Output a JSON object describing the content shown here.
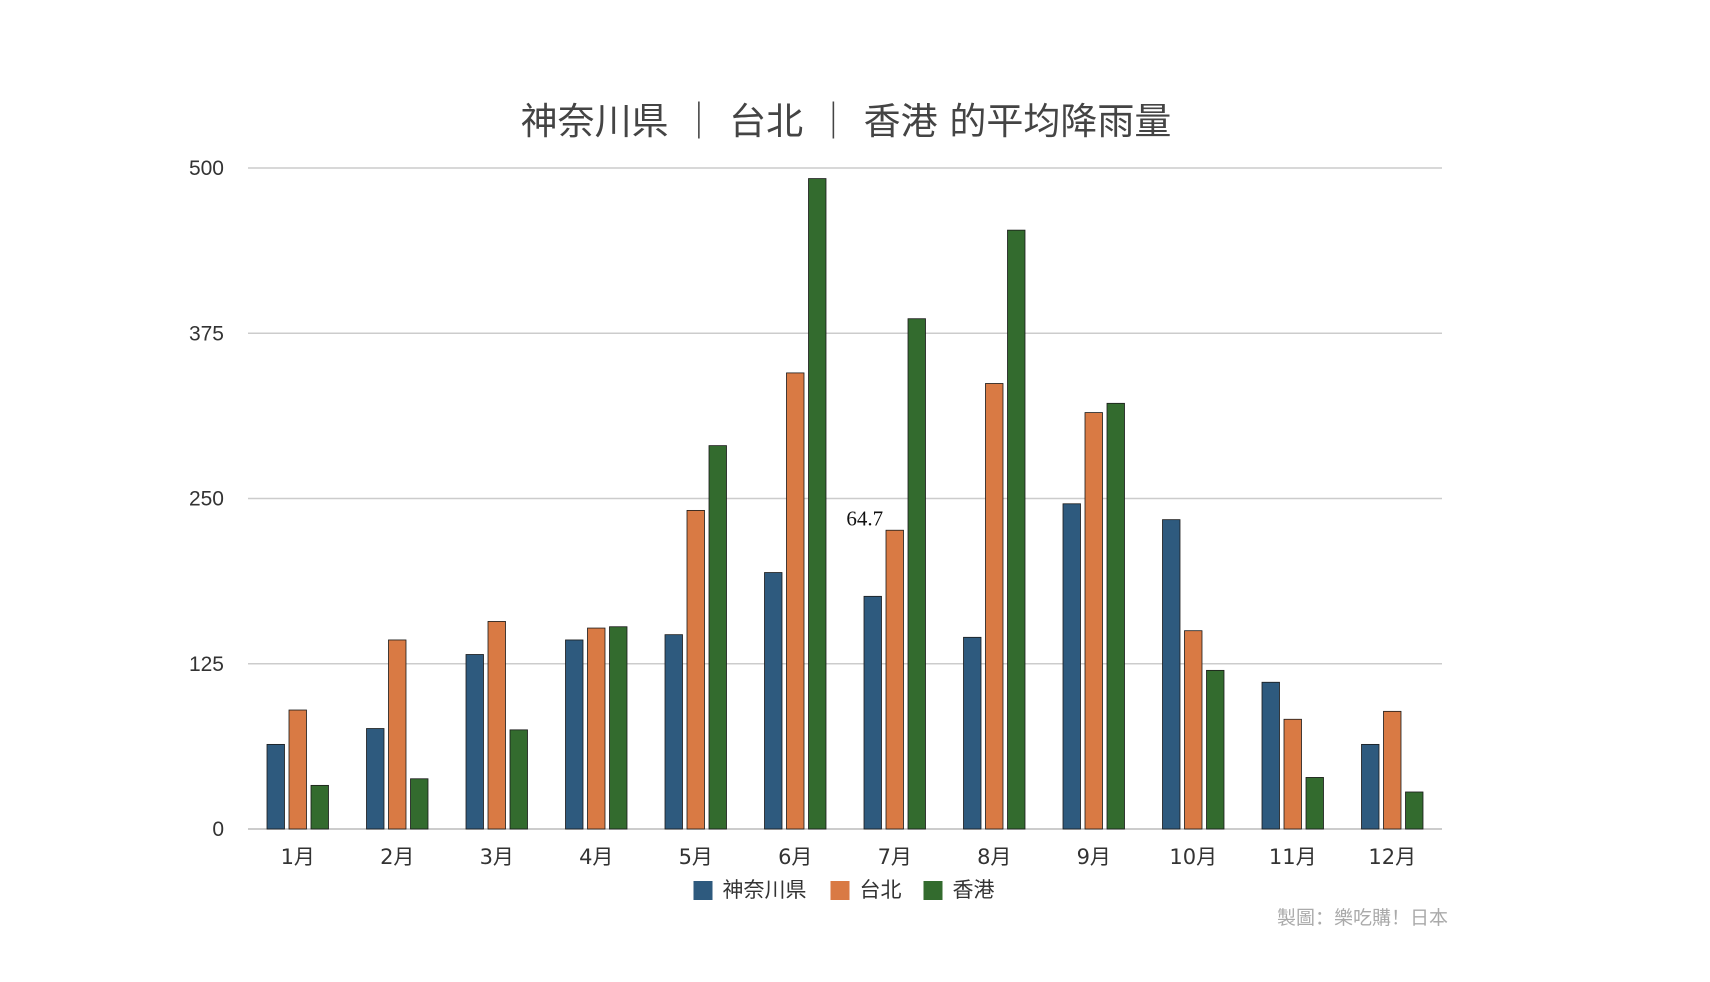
{
  "chart_data": {
    "type": "bar",
    "title": "神奈川県 ｜ 台北 ｜ 香港 的平均降雨量",
    "categories": [
      "1月",
      "2月",
      "3月",
      "4月",
      "5月",
      "6月",
      "7月",
      "8月",
      "9月",
      "10月",
      "11月",
      "12月"
    ],
    "series": [
      {
        "name": "神奈川県",
        "color": "#2e5a7e",
        "values": [
          64,
          76,
          132,
          143,
          147,
          194,
          176,
          145,
          246,
          234,
          111,
          64
        ]
      },
      {
        "name": "台北",
        "color": "#d97a44",
        "values": [
          90,
          143,
          157,
          152,
          241,
          345,
          226,
          337,
          315,
          150,
          83,
          89
        ]
      },
      {
        "name": "香港",
        "color": "#336b2e",
        "values": [
          33,
          38,
          75,
          153,
          290,
          492,
          386,
          453,
          322,
          120,
          39,
          28
        ]
      }
    ],
    "ylim": [
      0,
      500
    ],
    "yticks": [
      0,
      125,
      250,
      375,
      500
    ],
    "grid": true,
    "legend": "bottom",
    "annotation": {
      "text": "64.7",
      "category": "7月",
      "y": 235
    },
    "credit": "製圖：樂吃購！日本"
  }
}
